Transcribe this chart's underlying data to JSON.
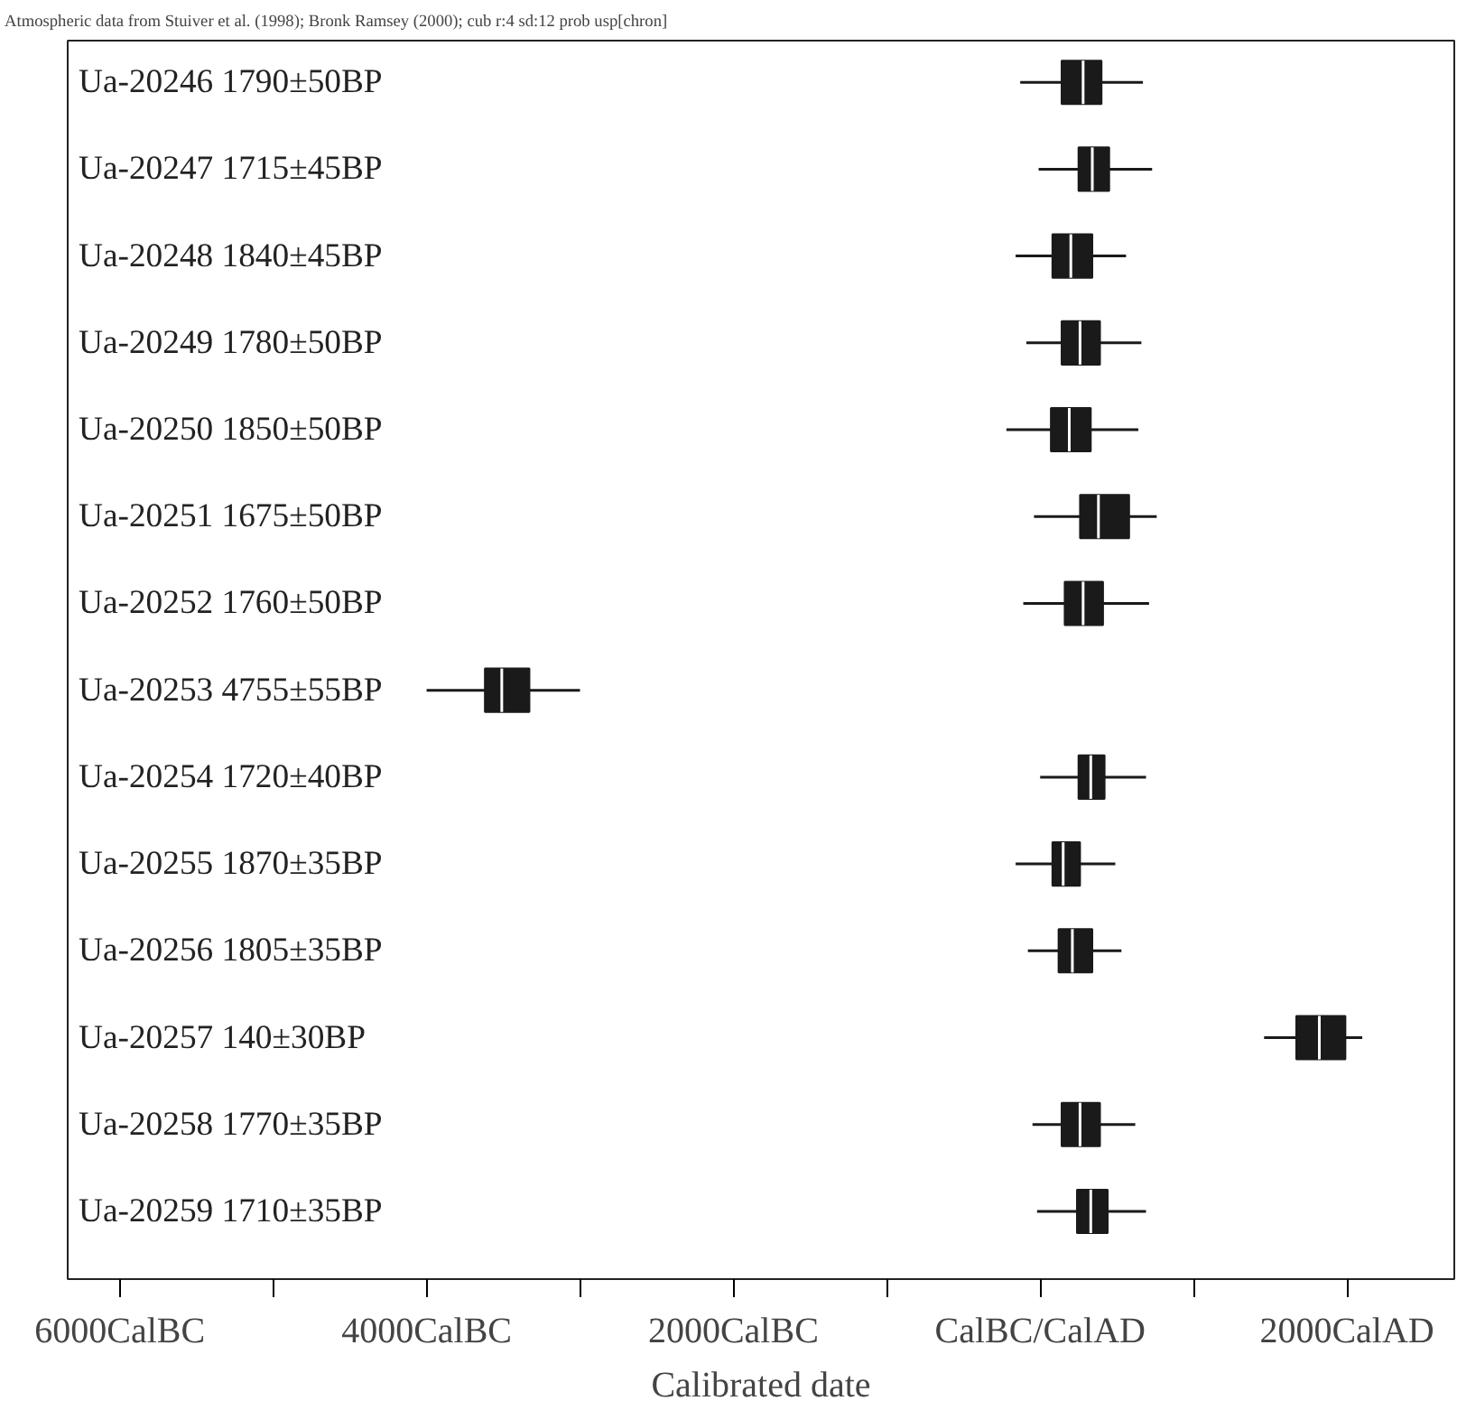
{
  "chart_data": {
    "type": "box",
    "orientation": "horizontal",
    "title": "Atmospheric data from Stuiver et al. (1998); Bronk Ramsey (2000); cub r:4 sd:12 prob usp[chron]",
    "xlabel": "Calibrated date",
    "categories": [
      "Ua-20246  1790±50BP",
      "Ua-20247  1715±45BP",
      "Ua-20248  1840±45BP",
      "Ua-20249  1780±50BP",
      "Ua-20250  1850±50BP",
      "Ua-20251  1675±50BP",
      "Ua-20252  1760±50BP",
      "Ua-20253  4755±55BP",
      "Ua-20254  1720±40BP",
      "Ua-20255  1870±35BP",
      "Ua-20256  1805±35BP",
      "Ua-20257  140±30BP",
      "Ua-20258  1770±35BP",
      "Ua-20259  1710±35BP"
    ],
    "boxes": [
      {
        "low": -130,
        "q1": 140,
        "median": 280,
        "q3": 400,
        "high": 670
      },
      {
        "low": -10,
        "q1": 250,
        "median": 340,
        "q3": 450,
        "high": 730
      },
      {
        "low": -160,
        "q1": 80,
        "median": 200,
        "q3": 340,
        "high": 560
      },
      {
        "low": -90,
        "q1": 140,
        "median": 260,
        "q3": 390,
        "high": 660
      },
      {
        "low": -220,
        "q1": 70,
        "median": 190,
        "q3": 330,
        "high": 640
      },
      {
        "low": -40,
        "q1": 260,
        "median": 380,
        "q3": 580,
        "high": 760
      },
      {
        "low": -110,
        "q1": 160,
        "median": 280,
        "q3": 410,
        "high": 710
      },
      {
        "low": -4000,
        "q1": -3620,
        "median": -3510,
        "q3": -3330,
        "high": -3000
      },
      {
        "low": 0,
        "q1": 250,
        "median": 330,
        "q3": 420,
        "high": 690
      },
      {
        "low": -160,
        "q1": 80,
        "median": 150,
        "q3": 260,
        "high": 490
      },
      {
        "low": -80,
        "q1": 120,
        "median": 210,
        "q3": 340,
        "high": 530
      },
      {
        "low": 1460,
        "q1": 1670,
        "median": 1820,
        "q3": 1990,
        "high": 2100
      },
      {
        "low": -50,
        "q1": 140,
        "median": 260,
        "q3": 390,
        "high": 620
      },
      {
        "low": -20,
        "q1": 240,
        "median": 330,
        "q3": 440,
        "high": 690
      }
    ],
    "color": "#1a1a1a",
    "xlim": [
      -6340,
      2700
    ],
    "xticks": [
      {
        "value": -6000,
        "label": "6000CalBC"
      },
      {
        "value": -5000,
        "label": null
      },
      {
        "value": -4000,
        "label": "4000CalBC"
      },
      {
        "value": -3000,
        "label": null
      },
      {
        "value": -2000,
        "label": "2000CalBC"
      },
      {
        "value": -1000,
        "label": null
      },
      {
        "value": 0,
        "label": "CalBC/CalAD"
      },
      {
        "value": 1000,
        "label": null
      },
      {
        "value": 2000,
        "label": "2000CalAD"
      }
    ],
    "tick_labels": "x",
    "grid": false
  }
}
